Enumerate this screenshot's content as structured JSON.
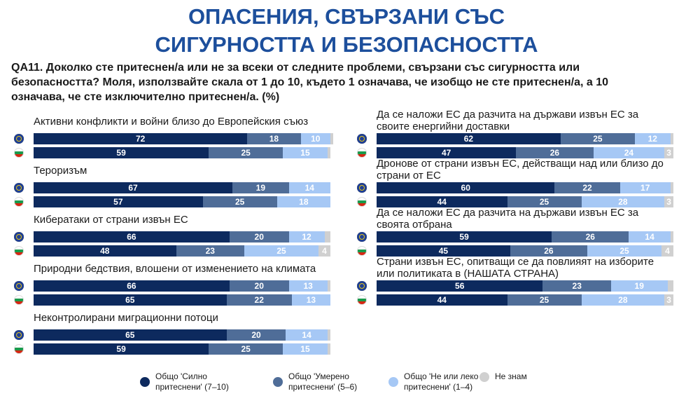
{
  "chart_data": {
    "type": "stacked-bar",
    "title": "ОПАСЕНИЯ, СВЪРЗАНИ СЪС СИГУРНОСТТА И БЕЗОПАСНОСТТА",
    "subtitle": "QA11. Доколко сте притеснен/а или не за всеки от следните проблеми, свързани със сигурността или безопасността? Моля, използвайте скала от 1 до 10, където 1 означава, че изобщо не сте притеснен/а, а 10 означава, че сте изключително притеснен/а. (%)",
    "categories": [
      "Активни конфликти и войни близо до Европейския съюз",
      "Тероризъм",
      "Кибератаки от страни извън ЕС",
      "Природни бедствия, влошени от изменението на климата",
      "Неконтролирани миграционни потоци",
      "Да се наложи ЕС да разчита на държави извън ЕС за своите енергийни доставки",
      "Дронове от страни извън ЕС, действащи над или близо до страни от ЕС",
      "Да се наложи ЕС да разчита на държави извън ЕС за своята отбрана",
      "Страни извън ЕС, опитващи се да повлияят на изборите или политиката в (НАШАТА СТРАНА)"
    ],
    "xlim": [
      0,
      100
    ],
    "series": [
      {
        "name": "Общо 'Силно притеснени' (7–10)",
        "color": "#0d2a5e",
        "values": [
          [
            72,
            59
          ],
          [
            67,
            57
          ],
          [
            66,
            48
          ],
          [
            66,
            65
          ],
          [
            65,
            59
          ],
          [
            62,
            47
          ],
          [
            60,
            44
          ],
          [
            59,
            45
          ],
          [
            56,
            44
          ]
        ]
      },
      {
        "name": "Общо 'Умерено притеснени' (5–6)",
        "color": "#4f6d98",
        "values": [
          [
            18,
            25
          ],
          [
            19,
            25
          ],
          [
            20,
            23
          ],
          [
            20,
            22
          ],
          [
            20,
            25
          ],
          [
            25,
            26
          ],
          [
            22,
            25
          ],
          [
            26,
            26
          ],
          [
            23,
            25
          ]
        ]
      },
      {
        "name": "Общо 'Не или леко притеснени' (1–4)",
        "color": "#a6c8f5",
        "values": [
          [
            10,
            15
          ],
          [
            14,
            18
          ],
          [
            12,
            25
          ],
          [
            13,
            13
          ],
          [
            14,
            15
          ],
          [
            12,
            24
          ],
          [
            17,
            28
          ],
          [
            14,
            25
          ],
          [
            19,
            28
          ]
        ]
      },
      {
        "name": "Не знам",
        "color": "#d0d0d0",
        "values": [
          [
            1,
            1
          ],
          [
            0,
            0
          ],
          [
            2,
            4
          ],
          [
            1,
            0
          ],
          [
            1,
            1
          ],
          [
            1,
            3
          ],
          [
            1,
            3
          ],
          [
            1,
            4
          ],
          [
            2,
            3
          ]
        ]
      }
    ]
  }
}
